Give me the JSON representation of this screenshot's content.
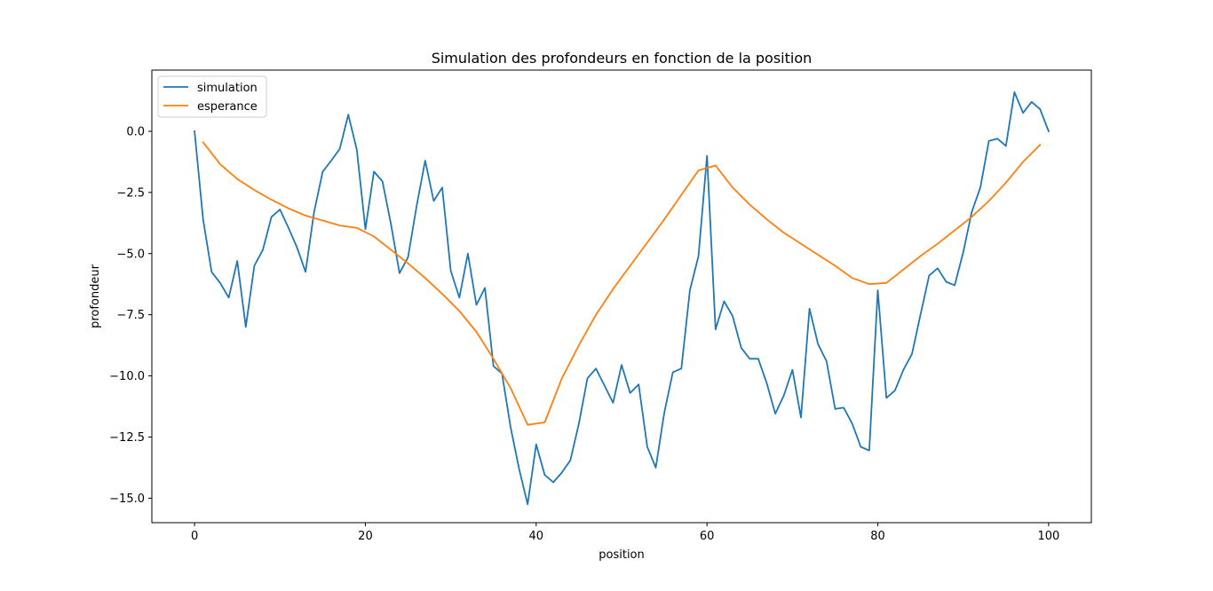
{
  "chart_data": {
    "type": "line",
    "title": "Simulation des profondeurs en fonction de la position",
    "xlabel": "position",
    "ylabel": "profondeur",
    "xlim": [
      -5,
      105
    ],
    "ylim": [
      -16.0,
      2.5
    ],
    "xticks": [
      0,
      20,
      40,
      60,
      80,
      100
    ],
    "xtick_labels": [
      "0",
      "20",
      "40",
      "60",
      "80",
      "100"
    ],
    "yticks": [
      0.0,
      -2.5,
      -5.0,
      -7.5,
      -10.0,
      -12.5,
      -15.0
    ],
    "ytick_labels": [
      "0.0",
      "−2.5",
      "−5.0",
      "−7.5",
      "−10.0",
      "−12.5",
      "−15.0"
    ],
    "grid": false,
    "legend_position": "upper left",
    "series": [
      {
        "name": "simulation",
        "color": "#1f77b4",
        "x": [
          0,
          1,
          2,
          3,
          4,
          5,
          6,
          7,
          8,
          9,
          10,
          11,
          12,
          13,
          14,
          15,
          16,
          17,
          18,
          19,
          20,
          21,
          22,
          23,
          24,
          25,
          26,
          27,
          28,
          29,
          30,
          31,
          32,
          33,
          34,
          35,
          36,
          37,
          38,
          39,
          40,
          41,
          42,
          43,
          44,
          45,
          46,
          47,
          48,
          49,
          50,
          51,
          52,
          53,
          54,
          55,
          56,
          57,
          58,
          59,
          60,
          61,
          62,
          63,
          64,
          65,
          66,
          67,
          68,
          69,
          70,
          71,
          72,
          73,
          74,
          75,
          76,
          77,
          78,
          79,
          80,
          81,
          82,
          83,
          84,
          85,
          86,
          87,
          88,
          89,
          90,
          91,
          92,
          93,
          94,
          95,
          96,
          97,
          98,
          99,
          100
        ],
        "y": [
          0.0,
          -3.6,
          -5.75,
          -6.2,
          -6.8,
          -5.3,
          -8.0,
          -5.5,
          -4.85,
          -3.5,
          -3.2,
          -3.95,
          -4.75,
          -5.75,
          -3.3,
          -1.65,
          -1.2,
          -0.72,
          0.68,
          -0.75,
          -4.0,
          -1.65,
          -2.05,
          -3.8,
          -5.8,
          -5.15,
          -3.05,
          -1.2,
          -2.85,
          -2.3,
          -5.7,
          -6.8,
          -5.0,
          -7.1,
          -6.4,
          -9.6,
          -9.9,
          -12.1,
          -13.8,
          -15.25,
          -12.8,
          -14.05,
          -14.35,
          -13.95,
          -13.45,
          -11.95,
          -10.1,
          -9.7,
          -10.4,
          -11.1,
          -9.55,
          -10.7,
          -10.35,
          -12.9,
          -13.75,
          -11.5,
          -9.85,
          -9.7,
          -6.5,
          -5.1,
          -1.0,
          -8.1,
          -6.95,
          -7.55,
          -8.85,
          -9.3,
          -9.3,
          -10.3,
          -11.55,
          -10.8,
          -9.75,
          -11.7,
          -7.25,
          -8.7,
          -9.4,
          -11.35,
          -11.3,
          -11.95,
          -12.9,
          -13.05,
          -6.5,
          -10.9,
          -10.6,
          -9.75,
          -9.1,
          -7.5,
          -5.9,
          -5.6,
          -6.15,
          -6.3,
          -4.95,
          -3.3,
          -2.3,
          -0.4,
          -0.3,
          -0.6,
          1.6,
          0.75,
          1.2,
          0.9,
          0.0
        ]
      },
      {
        "name": "esperance",
        "color": "#ff7f0e",
        "x": [
          1,
          3,
          5,
          7,
          9,
          11,
          13,
          15,
          17,
          19,
          21,
          23,
          25,
          27,
          29,
          31,
          33,
          35,
          37,
          39,
          41,
          43,
          45,
          47,
          49,
          51,
          53,
          55,
          57,
          59,
          61,
          63,
          65,
          67,
          69,
          71,
          73,
          75,
          77,
          79,
          81,
          83,
          85,
          87,
          89,
          91,
          93,
          95,
          97,
          99
        ],
        "y": [
          -0.45,
          -1.35,
          -1.95,
          -2.4,
          -2.8,
          -3.15,
          -3.45,
          -3.65,
          -3.85,
          -3.95,
          -4.3,
          -4.85,
          -5.4,
          -6.0,
          -6.65,
          -7.35,
          -8.2,
          -9.3,
          -10.5,
          -12.0,
          -11.9,
          -10.1,
          -8.75,
          -7.5,
          -6.45,
          -5.5,
          -4.55,
          -3.6,
          -2.6,
          -1.6,
          -1.4,
          -2.3,
          -3.0,
          -3.6,
          -4.15,
          -4.6,
          -5.05,
          -5.5,
          -6.0,
          -6.25,
          -6.2,
          -5.65,
          -5.1,
          -4.6,
          -4.05,
          -3.5,
          -2.85,
          -2.1,
          -1.25,
          -0.55
        ]
      }
    ]
  }
}
